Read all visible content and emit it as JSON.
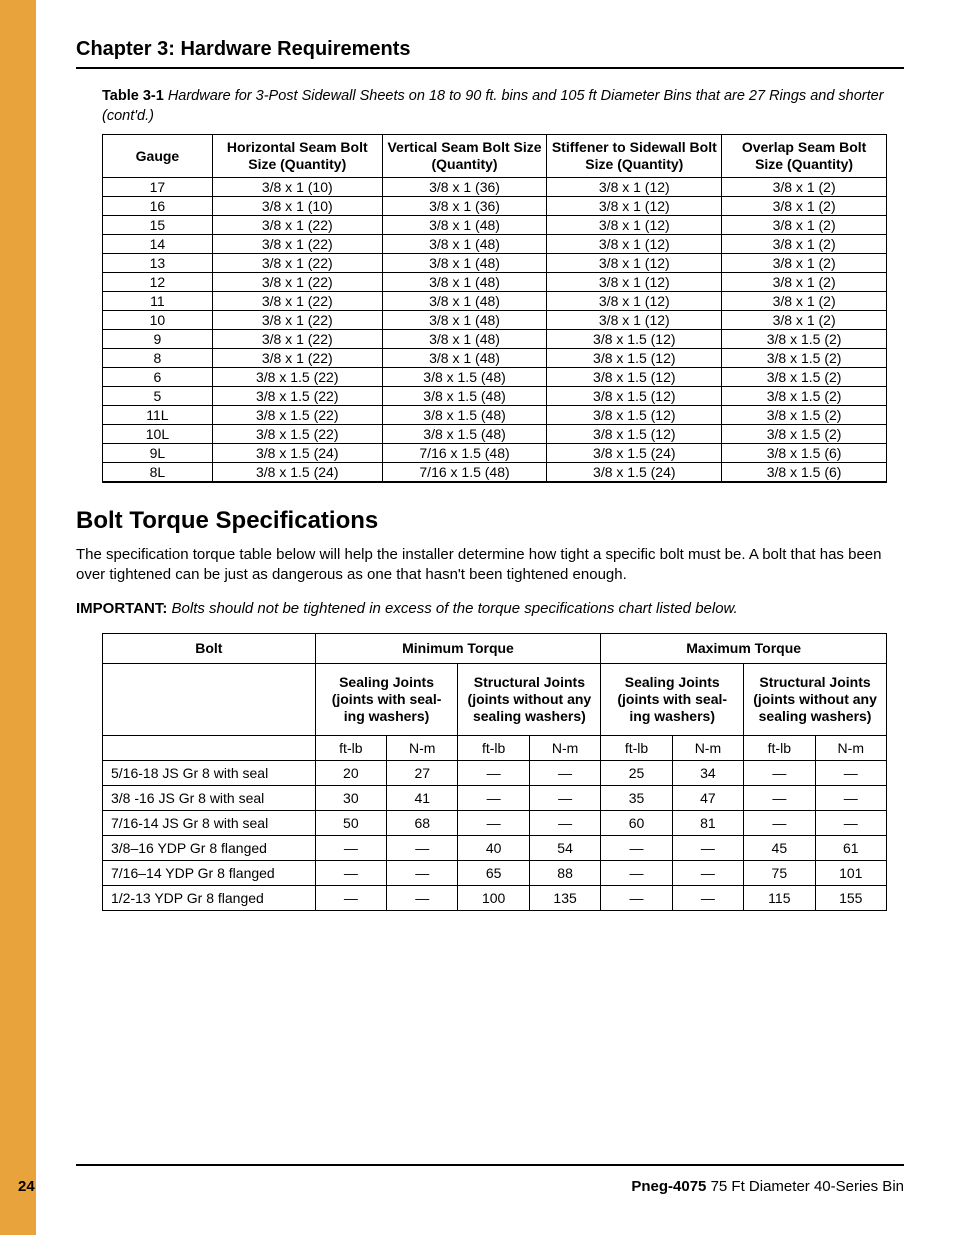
{
  "chapter_title": "Chapter 3: Hardware Requirements",
  "table1": {
    "caption_label": "Table 3-1 ",
    "caption_text": "Hardware for 3-Post Sidewall Sheets on 18 to 90 ft. bins and 105 ft Diameter Bins that are 27 Rings and shorter (cont'd.)",
    "columns": [
      "Gauge",
      "Horizontal Seam Bolt Size (Quantity)",
      "Vertical Seam Bolt Size (Quantity)",
      "Stiffener to Sidewall Bolt Size (Quantity)",
      "Overlap Seam Bolt Size (Quantity)"
    ],
    "rows": [
      [
        "17",
        "3/8 x 1 (10)",
        "3/8 x 1 (36)",
        "3/8 x 1 (12)",
        "3/8 x 1 (2)"
      ],
      [
        "16",
        "3/8 x 1 (10)",
        "3/8 x 1 (36)",
        "3/8 x 1 (12)",
        "3/8 x 1 (2)"
      ],
      [
        "15",
        "3/8 x 1 (22)",
        "3/8 x 1 (48)",
        "3/8 x 1 (12)",
        "3/8 x 1 (2)"
      ],
      [
        "14",
        "3/8 x 1 (22)",
        "3/8 x 1 (48)",
        "3/8 x 1 (12)",
        "3/8 x 1 (2)"
      ],
      [
        "13",
        "3/8 x 1 (22)",
        "3/8 x 1 (48)",
        "3/8 x 1 (12)",
        "3/8 x 1 (2)"
      ],
      [
        "12",
        "3/8 x 1 (22)",
        "3/8 x 1 (48)",
        "3/8 x 1 (12)",
        "3/8 x 1 (2)"
      ],
      [
        "11",
        "3/8 x 1 (22)",
        "3/8 x 1 (48)",
        "3/8 x 1 (12)",
        "3/8 x 1 (2)"
      ],
      [
        "10",
        "3/8 x 1 (22)",
        "3/8 x 1 (48)",
        "3/8 x 1 (12)",
        "3/8 x 1 (2)"
      ],
      [
        "9",
        "3/8 x 1 (22)",
        "3/8 x 1 (48)",
        "3/8 x 1.5  (12)",
        "3/8 x 1.5  (2)"
      ],
      [
        "8",
        "3/8 x 1 (22)",
        "3/8 x 1 (48)",
        "3/8 x 1.5  (12)",
        "3/8 x 1.5  (2)"
      ],
      [
        "6",
        "3/8 x 1.5 (22)",
        "3/8 x 1.5  (48)",
        "3/8 x 1.5  (12)",
        "3/8 x 1.5  (2)"
      ],
      [
        "5",
        "3/8 x 1.5 (22)",
        "3/8 x 1.5  (48)",
        "3/8 x 1.5  (12)",
        "3/8 x 1.5  (2)"
      ],
      [
        "11L",
        "3/8 x 1.5 (22)",
        "3/8 x 1.5  (48)",
        "3/8 x 1.5  (12)",
        "3/8 x 1.5  (2)"
      ],
      [
        "10L",
        "3/8 x 1.5 (22)",
        "3/8 x 1.5  (48)",
        "3/8 x 1.5  (12)",
        "3/8 x 1.5  (2)"
      ],
      [
        "9L",
        "3/8 x 1.5 (24)",
        "7/16 x 1.5 (48)",
        "3/8 x 1.5  (24)",
        "3/8 x 1.5  (6)"
      ],
      [
        "8L",
        "3/8 x 1.5 (24)",
        "7/16 x 1.5 (48)",
        "3/8 x 1.5  (24)",
        "3/8 x 1.5  (6)"
      ]
    ]
  },
  "torque_section": {
    "title": "Bolt Torque Specifications",
    "body": "The specification torque table below will help the installer determine how tight a specific bolt must be. A bolt that has been over tightened can be just as dangerous as one that hasn't been tightened enough.",
    "important_label": "IMPORTANT: ",
    "important_text": "Bolts should not be tightened in excess of the torque specifications chart listed below."
  },
  "table2": {
    "header_bolt": "Bolt",
    "header_min": "Minimum Torque",
    "header_max": "Maximum Torque",
    "sub_sealing": "Sealing Joints (joints with sealing washers)",
    "sub_structural": "Structural Joints (joints without any sealing washers)",
    "units": [
      "ft-lb",
      "N-m",
      "ft-lb",
      "N-m",
      "ft-lb",
      "N-m",
      "ft-lb",
      "N-m"
    ],
    "rows": [
      [
        "5/16-18 JS Gr 8 with seal",
        "20",
        "27",
        "—",
        "—",
        "25",
        "34",
        "—",
        "—"
      ],
      [
        "3/8 -16 JS Gr 8 with seal",
        "30",
        "41",
        "—",
        "—",
        "35",
        "47",
        "—",
        "—"
      ],
      [
        "7/16-14 JS Gr 8 with seal",
        "50",
        "68",
        "—",
        "—",
        "60",
        "81",
        "—",
        "—"
      ],
      [
        "3/8–16 YDP Gr 8 flanged",
        "—",
        "—",
        "40",
        "54",
        "—",
        "—",
        "45",
        "61"
      ],
      [
        "7/16–14 YDP Gr 8 flanged",
        "—",
        "—",
        "65",
        "88",
        "—",
        "—",
        "75",
        "101"
      ],
      [
        "1/2-13 YDP Gr 8 flanged",
        "—",
        "—",
        "100",
        "135",
        "—",
        "—",
        "115",
        "155"
      ]
    ]
  },
  "footer": {
    "page_number": "24",
    "doc_id": "Pneg-4075 ",
    "doc_title": "75 Ft Diameter 40-Series Bin"
  },
  "colors": {
    "sidebar": "#e8a33d",
    "text": "#000000",
    "background": "#ffffff"
  }
}
